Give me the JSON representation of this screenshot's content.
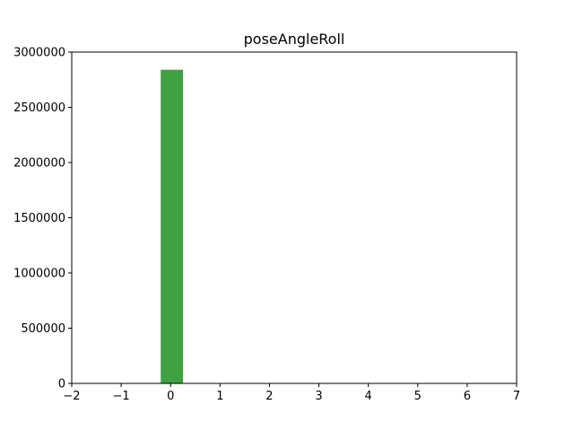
{
  "chart_data": {
    "type": "bar",
    "title": "poseAngleRoll",
    "xlabel": "",
    "ylabel": "",
    "xlim": [
      -2,
      7
    ],
    "ylim": [
      0,
      3000000
    ],
    "x_ticks": [
      "−2",
      "−1",
      "0",
      "1",
      "2",
      "3",
      "4",
      "5",
      "6",
      "7"
    ],
    "y_ticks": [
      "0",
      "500000",
      "1000000",
      "1500000",
      "2000000",
      "2500000",
      "3000000"
    ],
    "bars": [
      {
        "x_start": -0.2,
        "x_end": 0.25,
        "value": 2840000
      }
    ],
    "bar_color": "#3fa142",
    "grid": false,
    "legend": "none"
  }
}
